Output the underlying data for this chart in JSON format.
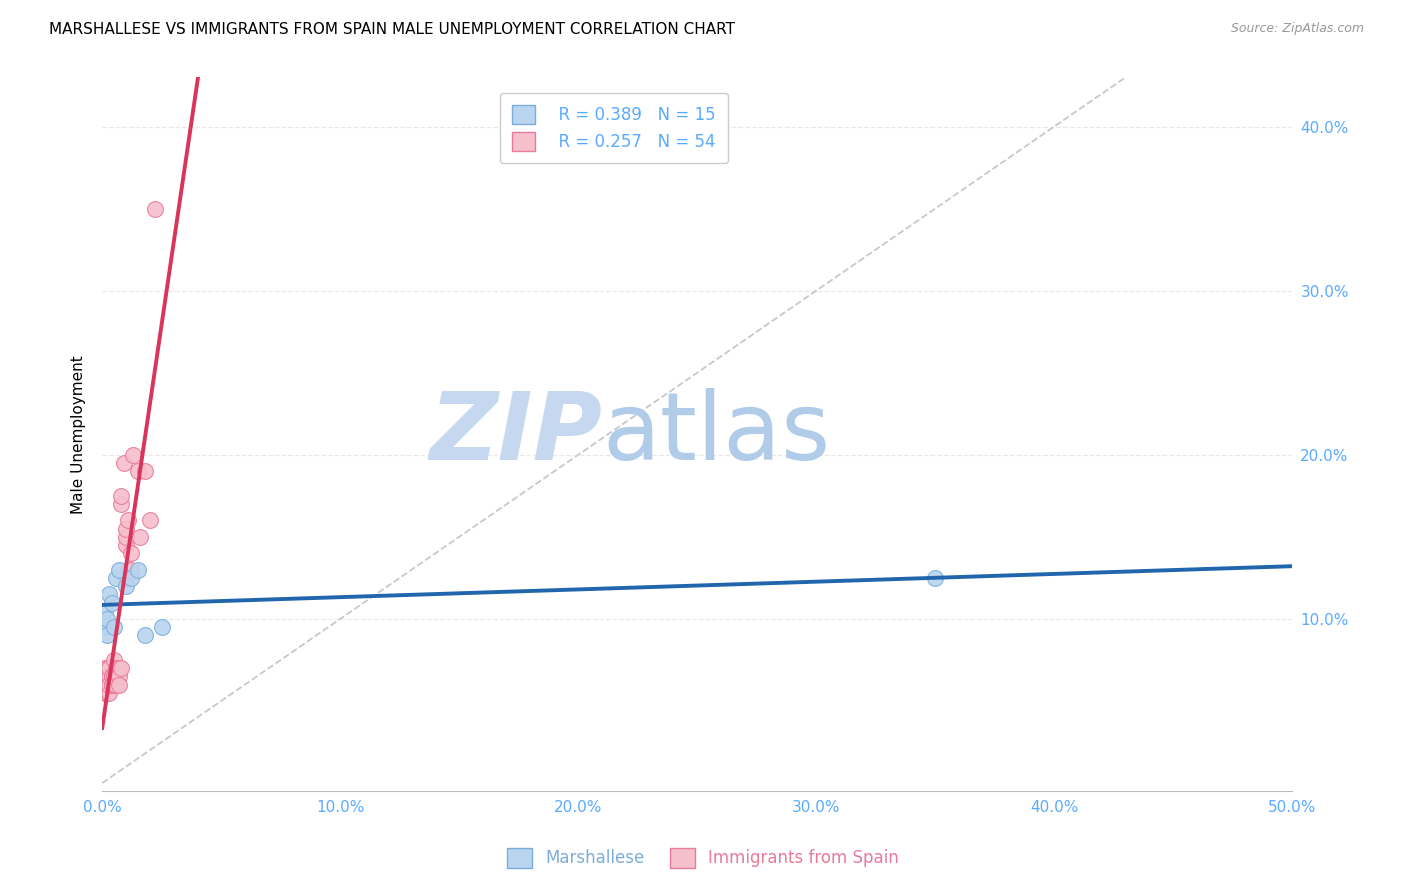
{
  "title": "MARSHALLESE VS IMMIGRANTS FROM SPAIN MALE UNEMPLOYMENT CORRELATION CHART",
  "source": "Source: ZipAtlas.com",
  "ylabel": "Male Unemployment",
  "xmin": 0.0,
  "xmax": 0.5,
  "ymin": -0.005,
  "ymax": 0.43,
  "xticks": [
    0.0,
    0.1,
    0.2,
    0.3,
    0.4,
    0.5
  ],
  "yticks": [
    0.1,
    0.2,
    0.3,
    0.4
  ],
  "marshallese_x": [
    0.001,
    0.001,
    0.002,
    0.002,
    0.003,
    0.004,
    0.005,
    0.006,
    0.007,
    0.01,
    0.012,
    0.015,
    0.018,
    0.35,
    0.025
  ],
  "marshallese_y": [
    0.095,
    0.105,
    0.09,
    0.1,
    0.115,
    0.11,
    0.095,
    0.125,
    0.13,
    0.12,
    0.125,
    0.13,
    0.09,
    0.125,
    0.095
  ],
  "spain_x": [
    0.001,
    0.001,
    0.001,
    0.001,
    0.001,
    0.001,
    0.002,
    0.002,
    0.002,
    0.002,
    0.002,
    0.002,
    0.002,
    0.003,
    0.003,
    0.003,
    0.003,
    0.003,
    0.003,
    0.003,
    0.004,
    0.004,
    0.004,
    0.004,
    0.004,
    0.005,
    0.005,
    0.005,
    0.005,
    0.006,
    0.006,
    0.006,
    0.006,
    0.007,
    0.007,
    0.007,
    0.008,
    0.008,
    0.008,
    0.009,
    0.01,
    0.01,
    0.01,
    0.01,
    0.011,
    0.011,
    0.012,
    0.012,
    0.013,
    0.015,
    0.016,
    0.018,
    0.02,
    0.022
  ],
  "spain_y": [
    0.055,
    0.06,
    0.065,
    0.06,
    0.055,
    0.07,
    0.06,
    0.065,
    0.06,
    0.055,
    0.06,
    0.065,
    0.07,
    0.06,
    0.065,
    0.06,
    0.055,
    0.065,
    0.07,
    0.06,
    0.06,
    0.065,
    0.065,
    0.06,
    0.06,
    0.06,
    0.065,
    0.075,
    0.065,
    0.07,
    0.065,
    0.065,
    0.06,
    0.07,
    0.065,
    0.06,
    0.07,
    0.17,
    0.175,
    0.195,
    0.145,
    0.15,
    0.125,
    0.155,
    0.13,
    0.16,
    0.13,
    0.14,
    0.2,
    0.19,
    0.15,
    0.19,
    0.16,
    0.35
  ],
  "R_marshallese": 0.389,
  "N_marshallese": 15,
  "R_spain": 0.257,
  "N_spain": 54,
  "blue_scatter_face": "#b8d4ef",
  "blue_scatter_edge": "#7aaddb",
  "pink_scatter_face": "#f5bfcc",
  "pink_scatter_edge": "#e87a9a",
  "line_blue": "#2166ac",
  "line_pink": "#d9345a",
  "diag_color": "#c8c8c8",
  "grid_color": "#e8e8e8",
  "title_fontsize": 11,
  "axis_label_color": "#5aabff",
  "legend_color": "#5aabff",
  "watermark_zip": "ZIP",
  "watermark_atlas": "atlas",
  "watermark_color_zip": "#c5d8f0",
  "watermark_color_atlas": "#b0cce8"
}
